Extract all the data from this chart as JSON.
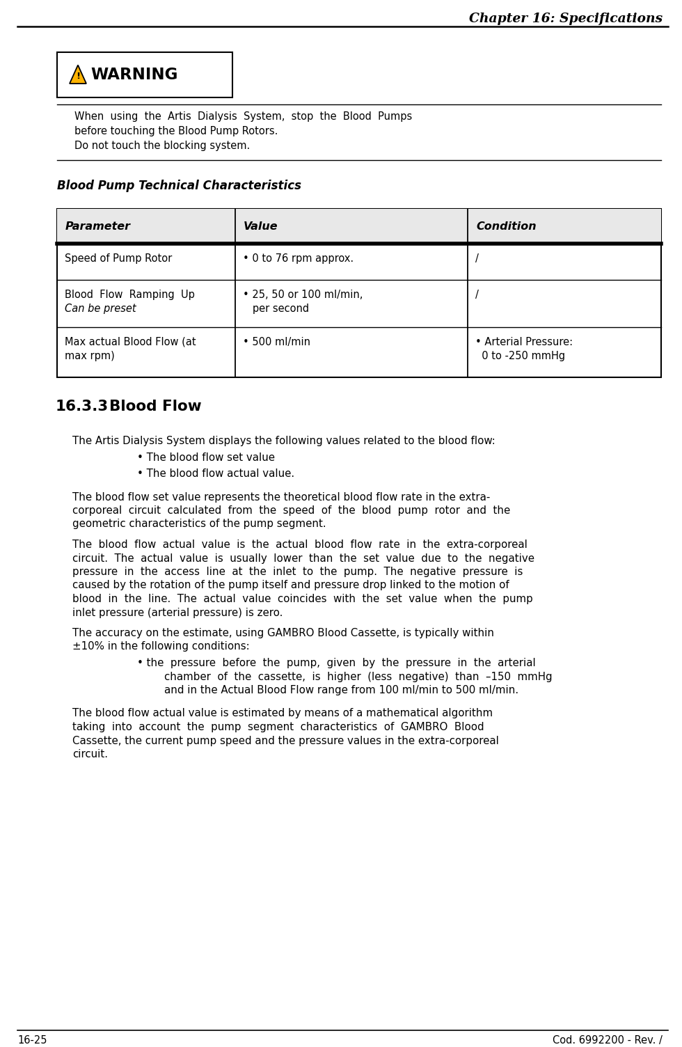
{
  "chapter_header": "Chapter 16: Specifications",
  "footer_left": "16-25",
  "footer_right": "Cod. 6992200 - Rev. /",
  "warning_text_lines": [
    "When  using  the  Artis  Dialysis  System,  stop  the  Blood  Pumps",
    "before touching the Blood Pump Rotors.",
    "Do not touch the blocking system."
  ],
  "section_title": "Blood Pump Technical Characteristics",
  "table_headers": [
    "Parameter",
    "Value",
    "Condition"
  ],
  "table_rows": [
    [
      "Speed of Pump Rotor",
      "• 0 to 76 rpm approx.",
      "/"
    ],
    [
      "Blood  Flow  Ramping  Up\nCan be preset",
      "• 25, 50 or 100 ml/min,\n   per second",
      "/"
    ],
    [
      "Max actual Blood Flow (at\nmax rpm)",
      "• 500 ml/min",
      "• Arterial Pressure:\n  0 to -250 mmHg"
    ]
  ],
  "subsection_number": "16.3.3",
  "subsection_title": "Blood Flow",
  "para0": "The Artis Dialysis System displays the following values related to the blood flow:",
  "bullet1": "• The blood flow set value",
  "bullet2": "• The blood flow actual value.",
  "para1_lines": [
    "The blood flow set value represents the theoretical blood flow rate in the extra-",
    "corporeal  circuit  calculated  from  the  speed  of  the  blood  pump  rotor  and  the",
    "geometric characteristics of the pump segment."
  ],
  "para2_lines": [
    "The  blood  flow  actual  value  is  the  actual  blood  flow  rate  in  the  extra-corporeal",
    "circuit.  The  actual  value  is  usually  lower  than  the  set  value  due  to  the  negative",
    "pressure  in  the  access  line  at  the  inlet  to  the  pump.  The  negative  pressure  is",
    "caused by the rotation of the pump itself and pressure drop linked to the motion of",
    "blood  in  the  line.  The  actual  value  coincides  with  the  set  value  when  the  pump",
    "inlet pressure (arterial pressure) is zero."
  ],
  "para3_lines": [
    "The accuracy on the estimate, using GAMBRO Blood Cassette, is typically within",
    "±10% in the following conditions:"
  ],
  "bullet3_lines": [
    "• the  pressure  before  the  pump,  given  by  the  pressure  in  the  arterial",
    "    chamber  of  the  cassette,  is  higher  (less  negative)  than  –150  mmHg",
    "    and in the Actual Blood Flow range from 100 ml/min to 500 ml/min."
  ],
  "para4_lines": [
    "The blood flow actual value is estimated by means of a mathematical algorithm",
    "taking  into  account  the  pump  segment  characteristics  of  GAMBRO  Blood",
    "Cassette, the current pump speed and the pressure values in the extra-corporeal",
    "circuit."
  ],
  "bg_color": "#ffffff",
  "text_color": "#000000",
  "triangle_color": "#FFB300",
  "page_width": 9.8,
  "page_height": 15.04
}
